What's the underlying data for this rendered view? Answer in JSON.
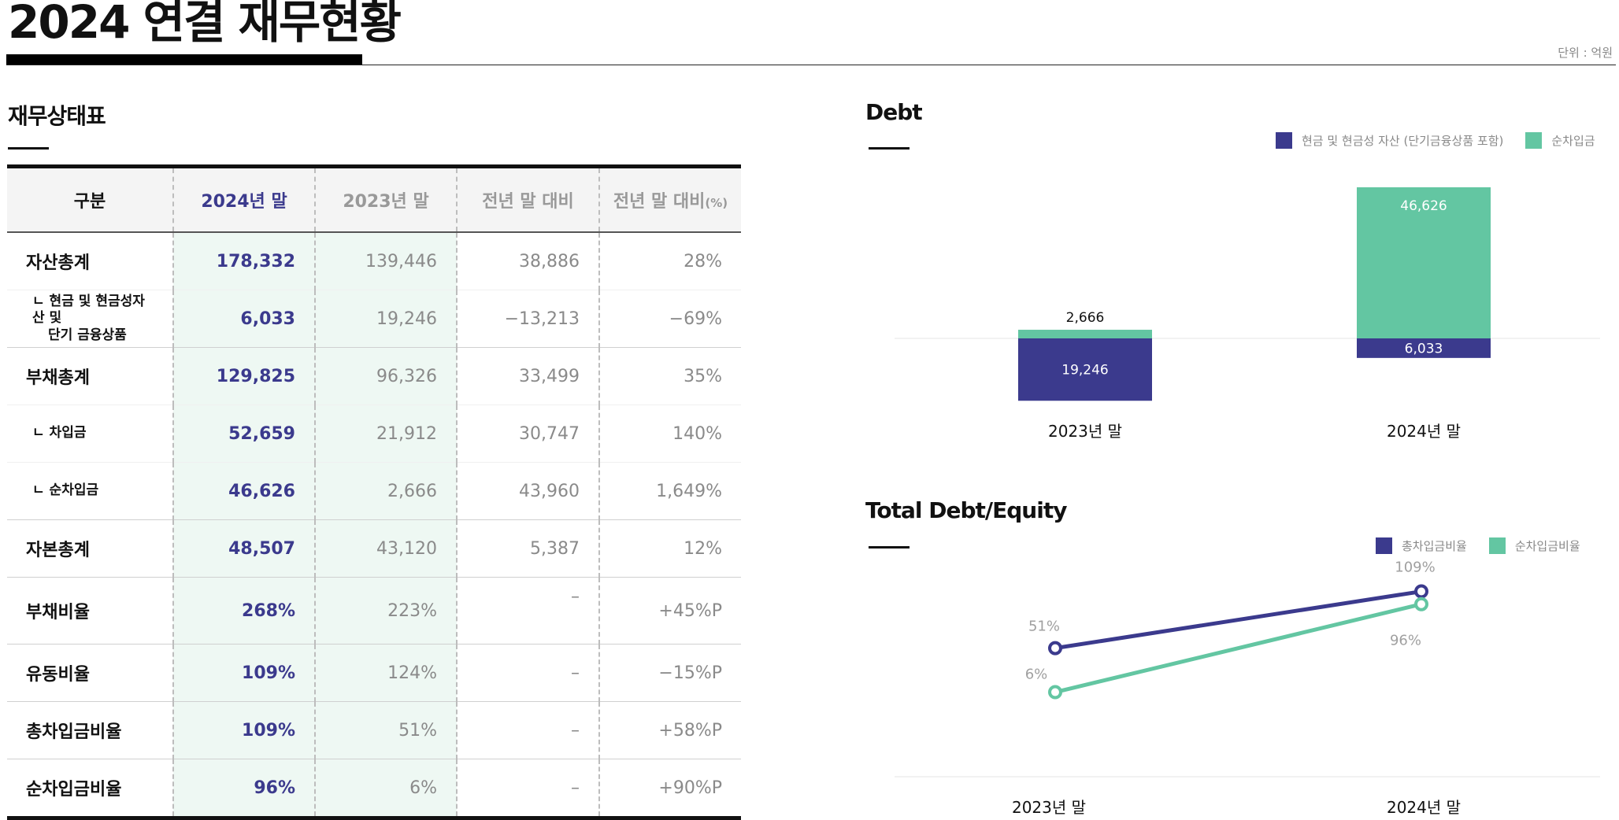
{
  "header": {
    "title": "2024 연결 재무현황",
    "unit": "단위 : 억원"
  },
  "balance_sheet": {
    "title": "재무상태표",
    "columns": [
      "구분",
      "2024년 말",
      "2023년 말",
      "전년 말 대비",
      "전년 말 대비",
      "(%)"
    ],
    "rows": [
      {
        "label": "자산총계",
        "v2024": "178,332",
        "v2023": "139,446",
        "diff": "38,886",
        "pct": "28%"
      },
      {
        "label": "ㄴ 현금 및 현금성자산 및",
        "label2": "단기 금융상품",
        "v2024": "6,033",
        "v2023": "19,246",
        "diff": "−13,213",
        "pct": "−69%"
      },
      {
        "label": "부채총계",
        "v2024": "129,825",
        "v2023": "96,326",
        "diff": "33,499",
        "pct": "35%"
      },
      {
        "label": "ㄴ 차입금",
        "v2024": "52,659",
        "v2023": "21,912",
        "diff": "30,747",
        "pct": "140%"
      },
      {
        "label": "ㄴ 순차입금",
        "v2024": "46,626",
        "v2023": "2,666",
        "diff": "43,960",
        "pct": "1,649%"
      },
      {
        "label": "자본총계",
        "v2024": "48,507",
        "v2023": "43,120",
        "diff": "5,387",
        "pct": "12%"
      },
      {
        "label": "부채비율",
        "v2024": "268%",
        "v2023": "223%",
        "diff": "–",
        "pct": "+45%P"
      },
      {
        "label": "유동비율",
        "v2024": "109%",
        "v2023": "124%",
        "diff": "–",
        "pct": "−15%P"
      },
      {
        "label": "총차입금비율",
        "v2024": "109%",
        "v2023": "51%",
        "diff": "–",
        "pct": "+58%P"
      },
      {
        "label": "순차입금비율",
        "v2024": "96%",
        "v2023": "6%",
        "diff": "–",
        "pct": "+90%P"
      }
    ]
  },
  "colors": {
    "navy": "#3b3a8d",
    "mint": "#63c6a2"
  },
  "chart_data": [
    {
      "type": "bar",
      "title": "Debt",
      "categories": [
        "2023년 말",
        "2024년 말"
      ],
      "series": [
        {
          "name": "현금 및 현금성 자산 (단기금융상품 포함)",
          "values": [
            -19246,
            -6033
          ],
          "labels": [
            "19,246",
            "6,033"
          ],
          "color": "#3b3a8d"
        },
        {
          "name": "순차입금",
          "values": [
            2666,
            46626
          ],
          "labels": [
            "2,666",
            "46,626"
          ],
          "color": "#63c6a2"
        }
      ],
      "legend": "top-right",
      "grid": false
    },
    {
      "type": "line",
      "title": "Total Debt/Equity",
      "categories": [
        "2023년 말",
        "2024년 말"
      ],
      "series": [
        {
          "name": "총차입금비율",
          "values": [
            51,
            109
          ],
          "labels": [
            "51%",
            "109%"
          ],
          "color": "#3b3a8d"
        },
        {
          "name": "순차입금비율",
          "values": [
            6,
            96
          ],
          "labels": [
            "6%",
            "96%"
          ],
          "color": "#63c6a2"
        }
      ],
      "legend": "top-right",
      "grid": false
    }
  ]
}
